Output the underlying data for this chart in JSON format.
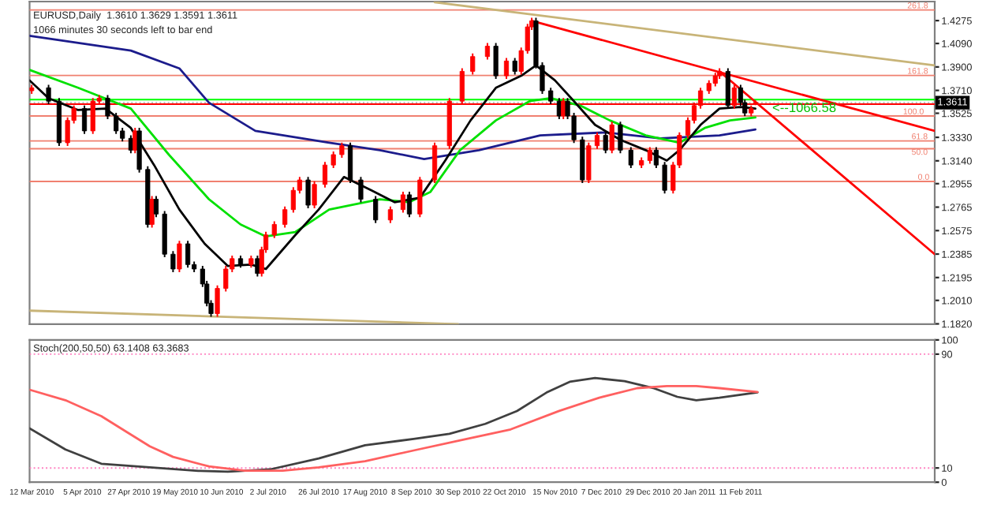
{
  "chart_data": [
    {
      "type": "candlestick",
      "title": "EURUSD,Daily  1.3610 1.3629 1.3591 1.3611",
      "subtitle": "1066 minutes 30 seconds left to bar end",
      "x": [
        "2010-03-12",
        "2010-03-20",
        "2010-03-25",
        "2010-03-29",
        "2010-04-01",
        "2010-04-06",
        "2010-04-10",
        "2010-04-13",
        "2010-04-17",
        "2010-04-21",
        "2010-04-24",
        "2010-04-28",
        "2010-04-30",
        "2010-05-02",
        "2010-05-06",
        "2010-05-08",
        "2010-05-10",
        "2010-05-14",
        "2010-05-18",
        "2010-05-21",
        "2010-05-25",
        "2010-05-28",
        "2010-06-01",
        "2010-06-03",
        "2010-06-05",
        "2010-06-08",
        "2010-06-12",
        "2010-06-15",
        "2010-06-19",
        "2010-06-24",
        "2010-06-27",
        "2010-06-29",
        "2010-07-01",
        "2010-07-05",
        "2010-07-10",
        "2010-07-14",
        "2010-07-17",
        "2010-07-21",
        "2010-07-24",
        "2010-07-29",
        "2010-08-02",
        "2010-08-06",
        "2010-08-10",
        "2010-08-15",
        "2010-08-22",
        "2010-08-29",
        "2010-09-04",
        "2010-09-07",
        "2010-09-12",
        "2010-09-19",
        "2010-09-26",
        "2010-10-02",
        "2010-10-07",
        "2010-10-14",
        "2010-10-18",
        "2010-10-23",
        "2010-10-27",
        "2010-10-30",
        "2010-11-02",
        "2010-11-04",
        "2010-11-06",
        "2010-11-09",
        "2010-11-13",
        "2010-11-17",
        "2010-11-19",
        "2010-11-21",
        "2010-11-24",
        "2010-11-28",
        "2010-12-01",
        "2010-12-05",
        "2010-12-09",
        "2010-12-12",
        "2010-12-16",
        "2010-12-21",
        "2010-12-26",
        "2010-12-30",
        "2011-01-02",
        "2011-01-06",
        "2011-01-10",
        "2011-01-13",
        "2011-01-17",
        "2011-01-20",
        "2011-01-23",
        "2011-01-27",
        "2011-01-30",
        "2011-02-01",
        "2011-02-05",
        "2011-02-08",
        "2011-02-11",
        "2011-02-13",
        "2011-02-16",
        "2011-02-18"
      ],
      "ohlc": [
        [
          1.3707,
          1.3756,
          1.3682,
          1.3731
        ],
        [
          1.3731,
          1.3756,
          1.3598,
          1.3623
        ],
        [
          1.3623,
          1.3648,
          1.3261,
          1.3286
        ],
        [
          1.3286,
          1.3492,
          1.3261,
          1.3467
        ],
        [
          1.3467,
          1.3588,
          1.3442,
          1.3563
        ],
        [
          1.3563,
          1.3588,
          1.3357,
          1.3382
        ],
        [
          1.3382,
          1.3648,
          1.3357,
          1.3623
        ],
        [
          1.3623,
          1.3672,
          1.3598,
          1.3647
        ],
        [
          1.3647,
          1.3672,
          1.3478,
          1.3503
        ],
        [
          1.3503,
          1.3528,
          1.3357,
          1.3382
        ],
        [
          1.3382,
          1.3407,
          1.3297,
          1.3322
        ],
        [
          1.3322,
          1.3347,
          1.3201,
          1.3226
        ],
        [
          1.3226,
          1.3407,
          1.3201,
          1.3382
        ],
        [
          1.3382,
          1.3407,
          1.3045,
          1.307
        ],
        [
          1.307,
          1.3095,
          1.26,
          1.2625
        ],
        [
          1.2625,
          1.2854,
          1.26,
          1.2829
        ],
        [
          1.2829,
          1.2854,
          1.2684,
          1.2709
        ],
        [
          1.2709,
          1.2734,
          1.2359,
          1.2384
        ],
        [
          1.2384,
          1.2409,
          1.2239,
          1.2264
        ],
        [
          1.2264,
          1.2493,
          1.2239,
          1.2468
        ],
        [
          1.2468,
          1.2493,
          1.2275,
          1.23
        ],
        [
          1.23,
          1.2325,
          1.2239,
          1.2264
        ],
        [
          1.2264,
          1.2289,
          1.2118,
          1.2143
        ],
        [
          1.2143,
          1.2168,
          1.1962,
          1.1987
        ],
        [
          1.1987,
          1.2012,
          1.1878,
          1.1903
        ],
        [
          1.1903,
          1.2132,
          1.1878,
          1.2107
        ],
        [
          1.2107,
          1.2289,
          1.2082,
          1.2264
        ],
        [
          1.2264,
          1.2373,
          1.2239,
          1.2348
        ],
        [
          1.2348,
          1.2373,
          1.2275,
          1.23
        ],
        [
          1.23,
          1.2373,
          1.2275,
          1.2348
        ],
        [
          1.2348,
          1.2373,
          1.2203,
          1.2228
        ],
        [
          1.2228,
          1.2445,
          1.2203,
          1.242
        ],
        [
          1.242,
          1.2565,
          1.2395,
          1.254
        ],
        [
          1.254,
          1.265,
          1.2515,
          1.2625
        ],
        [
          1.2625,
          1.277,
          1.26,
          1.2745
        ],
        [
          1.2745,
          1.2926,
          1.272,
          1.2901
        ],
        [
          1.2901,
          1.301,
          1.2876,
          1.2985
        ],
        [
          1.2985,
          1.301,
          1.2756,
          1.2781
        ],
        [
          1.2781,
          1.2974,
          1.2756,
          1.2949
        ],
        [
          1.2949,
          1.3131,
          1.2924,
          1.3106
        ],
        [
          1.3106,
          1.3215,
          1.3081,
          1.319
        ],
        [
          1.319,
          1.3287,
          1.3165,
          1.3262
        ],
        [
          1.3262,
          1.3287,
          1.296,
          1.2985
        ],
        [
          1.2985,
          1.301,
          1.2804,
          1.2829
        ],
        [
          1.2829,
          1.2854,
          1.2636,
          1.2661
        ],
        [
          1.2661,
          1.277,
          1.2636,
          1.2745
        ],
        [
          1.2745,
          1.289,
          1.272,
          1.2865
        ],
        [
          1.2865,
          1.289,
          1.2684,
          1.2709
        ],
        [
          1.2709,
          1.301,
          1.2684,
          1.2985
        ],
        [
          1.2985,
          1.3287,
          1.296,
          1.3262
        ],
        [
          1.3262,
          1.3648,
          1.3237,
          1.3623
        ],
        [
          1.3623,
          1.3889,
          1.3598,
          1.3864
        ],
        [
          1.3864,
          1.4009,
          1.3839,
          1.3984
        ],
        [
          1.3984,
          1.4093,
          1.3959,
          1.4068
        ],
        [
          1.4068,
          1.4093,
          1.3803,
          1.3828
        ],
        [
          1.3828,
          1.3973,
          1.3803,
          1.3948
        ],
        [
          1.3948,
          1.3973,
          1.3839,
          1.3864
        ],
        [
          1.3864,
          1.4057,
          1.3839,
          1.4032
        ],
        [
          1.4032,
          1.4249,
          1.4007,
          1.4224
        ],
        [
          1.4224,
          1.4298,
          1.4199,
          1.4273
        ],
        [
          1.4273,
          1.4298,
          1.3887,
          1.3912
        ],
        [
          1.3912,
          1.3937,
          1.3682,
          1.3707
        ],
        [
          1.3707,
          1.3732,
          1.3598,
          1.3623
        ],
        [
          1.3623,
          1.3648,
          1.3478,
          1.3503
        ],
        [
          1.3503,
          1.3648,
          1.3478,
          1.3623
        ],
        [
          1.3623,
          1.3648,
          1.3478,
          1.3503
        ],
        [
          1.3503,
          1.3528,
          1.3285,
          1.331
        ],
        [
          1.331,
          1.3335,
          1.296,
          1.2985
        ],
        [
          1.2985,
          1.3287,
          1.296,
          1.3262
        ],
        [
          1.3262,
          1.3371,
          1.3237,
          1.3346
        ],
        [
          1.3346,
          1.3371,
          1.3201,
          1.3226
        ],
        [
          1.3226,
          1.3456,
          1.3201,
          1.3431
        ],
        [
          1.3431,
          1.3456,
          1.3201,
          1.3226
        ],
        [
          1.3226,
          1.3251,
          1.3081,
          1.3106
        ],
        [
          1.3106,
          1.3167,
          1.3081,
          1.3142
        ],
        [
          1.3142,
          1.3251,
          1.3117,
          1.3226
        ],
        [
          1.3226,
          1.3251,
          1.3081,
          1.3106
        ],
        [
          1.3106,
          1.3131,
          1.2876,
          1.2901
        ],
        [
          1.2901,
          1.3131,
          1.2876,
          1.3106
        ],
        [
          1.3106,
          1.3371,
          1.3081,
          1.3346
        ],
        [
          1.3346,
          1.3492,
          1.3321,
          1.3467
        ],
        [
          1.3467,
          1.3612,
          1.3442,
          1.3587
        ],
        [
          1.3587,
          1.3732,
          1.3562,
          1.3707
        ],
        [
          1.3707,
          1.3792,
          1.3682,
          1.3767
        ],
        [
          1.3767,
          1.3853,
          1.3742,
          1.3828
        ],
        [
          1.3828,
          1.3889,
          1.3803,
          1.3864
        ],
        [
          1.3864,
          1.3889,
          1.3562,
          1.3587
        ],
        [
          1.3587,
          1.3756,
          1.3562,
          1.3731
        ],
        [
          1.3731,
          1.3756,
          1.3586,
          1.3611
        ],
        [
          1.3611,
          1.3636,
          1.3502,
          1.3527
        ],
        [
          1.3527,
          1.3588,
          1.3502,
          1.3563
        ],
        [
          1.361,
          1.3629,
          1.3591,
          1.3611
        ]
      ],
      "colors": [
        "#ff0000",
        "#000000",
        "#000000",
        "#ff0000",
        "#ff0000",
        "#000000",
        "#ff0000",
        "#ff0000",
        "#000000",
        "#000000",
        "#000000",
        "#000000",
        "#ff0000",
        "#000000",
        "#000000",
        "#ff0000",
        "#000000",
        "#000000",
        "#000000",
        "#ff0000",
        "#000000",
        "#000000",
        "#000000",
        "#000000",
        "#000000",
        "#ff0000",
        "#ff0000",
        "#ff0000",
        "#000000",
        "#ff0000",
        "#000000",
        "#ff0000",
        "#ff0000",
        "#ff0000",
        "#ff0000",
        "#ff0000",
        "#ff0000",
        "#000000",
        "#ff0000",
        "#ff0000",
        "#ff0000",
        "#ff0000",
        "#000000",
        "#000000",
        "#000000",
        "#ff0000",
        "#ff0000",
        "#000000",
        "#ff0000",
        "#ff0000",
        "#ff0000",
        "#ff0000",
        "#ff0000",
        "#ff0000",
        "#000000",
        "#ff0000",
        "#000000",
        "#ff0000",
        "#ff0000",
        "#ff0000",
        "#000000",
        "#000000",
        "#000000",
        "#000000",
        "#ff0000",
        "#000000",
        "#000000",
        "#000000",
        "#ff0000",
        "#ff0000",
        "#000000",
        "#ff0000",
        "#000000",
        "#000000",
        "#ff0000",
        "#ff0000",
        "#000000",
        "#000000",
        "#ff0000",
        "#ff0000",
        "#ff0000",
        "#ff0000",
        "#ff0000",
        "#ff0000",
        "#ff0000",
        "#ff0000",
        "#000000",
        "#ff0000",
        "#000000",
        "#000000",
        "#ff0000",
        "#ff0000"
      ],
      "series": [
        {
          "type": "line",
          "color": "#1c1c8c",
          "x": [
            "2010-03-11",
            "2010-04-28",
            "2010-05-21",
            "2010-06-04",
            "2010-06-26",
            "2010-07-31",
            "2010-08-24",
            "2010-09-14",
            "2010-10-10",
            "2010-11-08",
            "2010-12-09",
            "2011-01-04",
            "2011-02-01",
            "2011-02-18"
          ],
          "values": [
            1.4152,
            1.4032,
            1.3888,
            1.3611,
            1.3382,
            1.3286,
            1.3226,
            1.3154,
            1.3226,
            1.3346,
            1.337,
            1.3322,
            1.3346,
            1.3394
          ]
        },
        {
          "type": "line",
          "color": "#00e000",
          "x": [
            "2010-03-11",
            "2010-04-03",
            "2010-04-28",
            "2010-05-16",
            "2010-06-04",
            "2010-06-19",
            "2010-07-01",
            "2010-07-15",
            "2010-07-31",
            "2010-08-24",
            "2010-09-07",
            "2010-09-17",
            "2010-10-01",
            "2010-10-18",
            "2010-11-03",
            "2010-11-13",
            "2010-11-27",
            "2010-12-11",
            "2010-12-28",
            "2011-01-13",
            "2011-01-25",
            "2011-02-06",
            "2011-02-18"
          ],
          "values": [
            1.3876,
            1.3731,
            1.3563,
            1.319,
            1.2829,
            1.2625,
            1.2528,
            1.2564,
            1.2745,
            1.2829,
            1.2805,
            1.2889,
            1.3226,
            1.3467,
            1.3623,
            1.3647,
            1.3587,
            1.3467,
            1.3346,
            1.3286,
            1.3406,
            1.3467,
            1.3491
          ]
        },
        {
          "type": "line",
          "color": "#000000",
          "x": [
            "2010-03-11",
            "2010-03-20",
            "2010-04-03",
            "2010-04-16",
            "2010-04-28",
            "2010-05-09",
            "2010-05-21",
            "2010-06-02",
            "2010-06-13",
            "2010-06-24",
            "2010-07-01",
            "2010-07-15",
            "2010-07-26",
            "2010-08-07",
            "2010-08-20",
            "2010-08-31",
            "2010-09-12",
            "2010-09-24",
            "2010-10-06",
            "2010-10-18",
            "2010-10-30",
            "2010-11-06",
            "2010-11-15",
            "2010-11-24",
            "2010-12-04",
            "2010-12-16",
            "2010-12-28",
            "2011-01-07",
            "2011-01-13",
            "2011-01-23",
            "2011-02-01",
            "2011-02-11",
            "2011-02-18"
          ],
          "values": [
            1.3791,
            1.3647,
            1.3551,
            1.3563,
            1.3406,
            1.3106,
            1.2745,
            1.2468,
            1.2288,
            1.23,
            1.2264,
            1.254,
            1.2745,
            1.3009,
            1.2901,
            1.2805,
            1.2841,
            1.3142,
            1.3467,
            1.3731,
            1.3828,
            1.3912,
            1.3791,
            1.3623,
            1.3431,
            1.331,
            1.3226,
            1.3142,
            1.3226,
            1.3431,
            1.3563,
            1.3575,
            1.3563
          ]
        },
        {
          "type": "line",
          "color": "#c8b478",
          "x": [
            "2010-09-19",
            "2011-05-14"
          ],
          "values": [
            1.4424,
            1.3912
          ]
        },
        {
          "type": "line",
          "color": "#c8b478",
          "x": [
            "2010-03-11",
            "2010-09-30"
          ],
          "values": [
            1.1927,
            1.1818
          ]
        },
        {
          "type": "line",
          "color": "#ff0000",
          "x": [
            "2010-11-04",
            "2011-05-14"
          ],
          "values": [
            1.4273,
            1.3382
          ]
        },
        {
          "type": "line",
          "color": "#ff0000",
          "x": [
            "2011-02-01",
            "2011-05-14"
          ],
          "values": [
            1.3864,
            1.2384
          ]
        }
      ],
      "ref_lines": [
        {
          "axis": "y",
          "value": 1.3635,
          "color": "#00ff00",
          "line_style": "solid"
        },
        {
          "axis": "y",
          "value": 1.3599,
          "color": "#ff0000",
          "line_style": "solid"
        },
        {
          "axis": "y",
          "value": 1.4361,
          "color": "#f08070",
          "line_style": "solid"
        },
        {
          "axis": "y",
          "value": 1.3831,
          "color": "#f08070",
          "line_style": "solid"
        },
        {
          "axis": "y",
          "value": 1.3503,
          "color": "#f08070",
          "line_style": "solid"
        },
        {
          "axis": "y",
          "value": 1.3301,
          "color": "#f08070",
          "line_style": "solid"
        },
        {
          "axis": "y",
          "value": 1.3238,
          "color": "#f08070",
          "line_style": "solid"
        },
        {
          "axis": "y",
          "value": 1.2973,
          "color": "#f08070",
          "line_style": "solid"
        },
        {
          "axis": "y",
          "value": 1.3611,
          "label": "1.3611",
          "color": "#c0c0c0",
          "line_style": "dotted"
        }
      ],
      "annotations": [
        {
          "text": "<--1066.58",
          "x": "2011-02-26",
          "y": 1.3563
        },
        {
          "text": "261.8",
          "x": "2011-05-01",
          "y": 1.4361
        },
        {
          "text": "161.8",
          "x": "2011-05-01",
          "y": 1.3831
        },
        {
          "text": "100.0",
          "x": "2011-04-29",
          "y": 1.3503
        },
        {
          "text": "61.8",
          "x": "2011-05-03",
          "y": 1.3301
        },
        {
          "text": "50.0",
          "x": "2011-05-03",
          "y": 1.3238
        },
        {
          "text": "0.0",
          "x": "2011-05-06",
          "y": 1.2973
        }
      ],
      "xlim": [
        "2010-03-11",
        "2011-05-14"
      ],
      "ylim": [
        1.1818,
        1.4429
      ],
      "yticks": [
        1.4275,
        {
          "value": 1.409,
          "label": "1.4090"
        },
        {
          "value": 1.39,
          "label": "1.3900"
        },
        {
          "value": 1.371,
          "label": "1.3710"
        },
        1.3525,
        {
          "value": 1.333,
          "label": "1.3330"
        },
        {
          "value": 1.314,
          "label": "1.3140"
        },
        1.2955,
        1.2765,
        1.2575,
        1.2385,
        1.2195,
        {
          "value": 1.201,
          "label": "1.2010"
        },
        {
          "value": 1.182,
          "label": "1.1820"
        }
      ],
      "tick_labels": "y"
    },
    {
      "type": "line",
      "title": "Stoch(200,50,50) 63.1408 63.3683",
      "series": [
        {
          "color": "#404040",
          "x": [
            "2010-03-11",
            "2010-03-28",
            "2010-04-14",
            "2010-05-07",
            "2010-05-30",
            "2010-06-13",
            "2010-07-03",
            "2010-07-26",
            "2010-08-17",
            "2010-09-09",
            "2010-09-26",
            "2010-10-13",
            "2010-10-28",
            "2010-11-11",
            "2010-11-22",
            "2010-12-04",
            "2010-12-18",
            "2011-01-01",
            "2011-01-12",
            "2011-01-21",
            "2011-02-01",
            "2011-02-19"
          ],
          "values": [
            37.9,
            23,
            13,
            10.4,
            8,
            7.4,
            9,
            16.7,
            26,
            30.4,
            34,
            41,
            50,
            63,
            70.6,
            73.2,
            71,
            66,
            60,
            57.6,
            59.4,
            63.1
          ]
        },
        {
          "color": "#ff6060",
          "x": [
            "2010-03-11",
            "2010-03-28",
            "2010-04-14",
            "2010-04-26",
            "2010-05-07",
            "2010-05-18",
            "2010-06-04",
            "2010-06-21",
            "2010-07-09",
            "2010-07-26",
            "2010-08-17",
            "2010-09-09",
            "2010-10-02",
            "2010-10-25",
            "2010-11-17",
            "2010-12-06",
            "2010-12-24",
            "2011-01-07",
            "2011-01-21",
            "2011-02-01",
            "2011-02-19"
          ],
          "values": [
            65,
            57.6,
            46.4,
            35.3,
            25.2,
            17.8,
            11.1,
            8.1,
            8.1,
            10.4,
            14.8,
            22.3,
            29.7,
            37.1,
            50.1,
            59.4,
            66.1,
            67.6,
            67.6,
            66.1,
            63.4
          ]
        }
      ],
      "ref_lines": [
        {
          "axis": "y",
          "value": 90,
          "color": "#ff80c0",
          "line_style": "dotted"
        },
        {
          "axis": "y",
          "value": 10,
          "color": "#ff80c0",
          "line_style": "dotted"
        }
      ],
      "xlim": [
        "2010-03-11",
        "2011-05-14"
      ],
      "ylim": [
        0,
        100
      ],
      "yticks": [
        0,
        10,
        90,
        100
      ],
      "xticks": [
        {
          "value": "2010-03-12",
          "label": "12 Mar 2010"
        },
        {
          "value": "2010-04-05",
          "label": "5 Apr 2010"
        },
        {
          "value": "2010-04-27",
          "label": "27 Apr 2010"
        },
        {
          "value": "2010-05-19",
          "label": "19 May 2010"
        },
        {
          "value": "2010-06-10",
          "label": "10 Jun 2010"
        },
        {
          "value": "2010-07-02",
          "label": "2 Jul 2010"
        },
        {
          "value": "2010-07-26",
          "label": "26 Jul 2010"
        },
        {
          "value": "2010-08-17",
          "label": "17 Aug 2010"
        },
        {
          "value": "2010-09-08",
          "label": "8 Sep 2010"
        },
        {
          "value": "2010-09-30",
          "label": "30 Sep 2010"
        },
        {
          "value": "2010-10-22",
          "label": "22 Oct 2010"
        },
        {
          "value": "2010-11-15",
          "label": "15 Nov 2010"
        },
        {
          "value": "2010-12-07",
          "label": "7 Dec 2010"
        },
        {
          "value": "2010-12-29",
          "label": "29 Dec 2010"
        },
        {
          "value": "2011-01-20",
          "label": "20 Jan 2011"
        },
        {
          "value": "2011-02-11",
          "label": "11 Feb 2011"
        }
      ]
    }
  ]
}
